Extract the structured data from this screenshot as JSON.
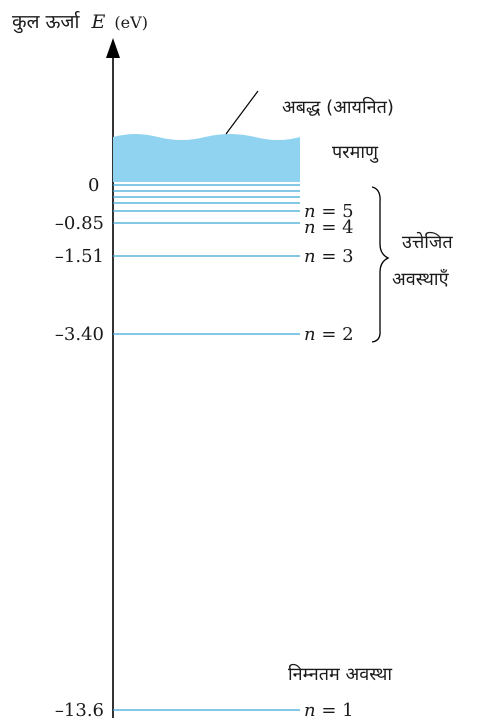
{
  "axis": {
    "label_prefix": "कुल ऊर्जा",
    "label_symbol": "E",
    "label_unit": "(eV)"
  },
  "unbound": {
    "label_line1": "अबद्ध (आयनित)",
    "label_line2": "परमाणु"
  },
  "levels": [
    {
      "n": 1,
      "energy": -13.6,
      "energy_label": "–13.6",
      "n_label": "n = 1"
    },
    {
      "n": 2,
      "energy": -3.4,
      "energy_label": "–3.40",
      "n_label": "n = 2"
    },
    {
      "n": 3,
      "energy": -1.51,
      "energy_label": "–1.51",
      "n_label": "n = 3"
    },
    {
      "n": 4,
      "energy": -0.85,
      "energy_label": "–0.85",
      "n_label": "n = 4"
    },
    {
      "n": 5,
      "energy": -0.54,
      "energy_label": "",
      "n_label": "n = 5"
    }
  ],
  "zero_label": "0",
  "excited": {
    "label_line1": "उत्तेजित",
    "label_line2": "अवस्थाएँ"
  },
  "ground": {
    "label": "निम्नतम अवस्था"
  },
  "colors": {
    "level_line": "#3aa6d8",
    "unbound_fill": "#8fd3f0",
    "axis": "#000000"
  }
}
